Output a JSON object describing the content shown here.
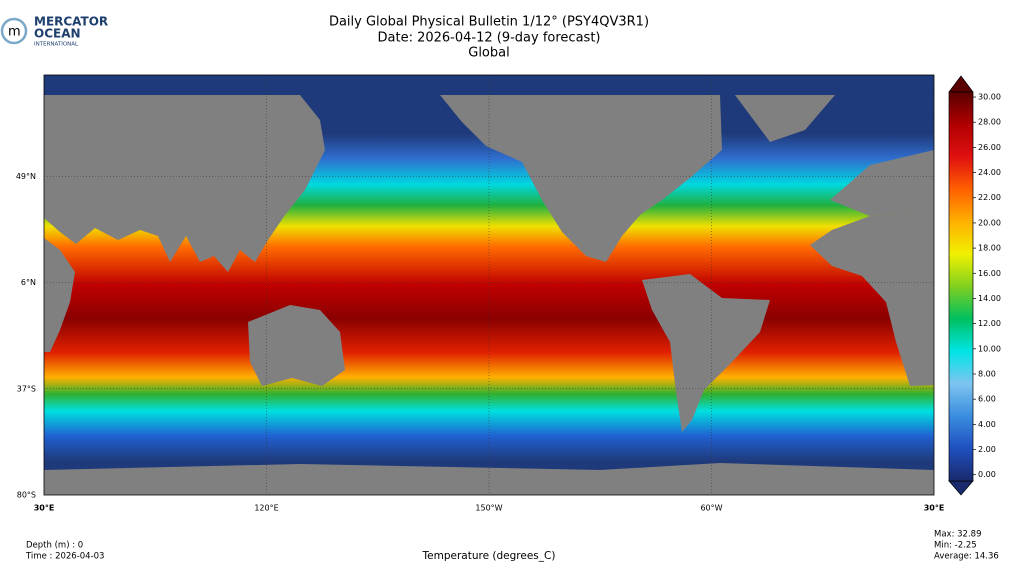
{
  "logo": {
    "line1": "MERCATOR",
    "line2": "OCEAN",
    "line3": "INTERNATIONAL"
  },
  "header": {
    "title": "Daily Global Physical Bulletin 1/12° (PSY4QV3R1)",
    "date": "Date: 2026-04-12 (9-day forecast)",
    "region": "Global"
  },
  "map": {
    "xlim": [
      30,
      390
    ],
    "ylim": [
      -80,
      90
    ],
    "xticks": [
      {
        "value": 30,
        "label": "30°E"
      },
      {
        "value": 120,
        "label": "120°E"
      },
      {
        "value": 210,
        "label": "150°W"
      },
      {
        "value": 300,
        "label": "60°W"
      },
      {
        "value": 390,
        "label": "30°E"
      }
    ],
    "yticks": [
      {
        "value": 49,
        "label": "49°N"
      },
      {
        "value": 6,
        "label": "6°N"
      },
      {
        "value": -37,
        "label": "37°S"
      },
      {
        "value": -80,
        "label": "80°S"
      }
    ],
    "grid": true
  },
  "colorbar": {
    "lim": [
      -0.5,
      30.4
    ],
    "ticks": [
      {
        "value": 0,
        "label": "0.00"
      },
      {
        "value": 2,
        "label": "2.00"
      },
      {
        "value": 4,
        "label": "4.00"
      },
      {
        "value": 6,
        "label": "6.00"
      },
      {
        "value": 8,
        "label": "8.00"
      },
      {
        "value": 10,
        "label": "10.00"
      },
      {
        "value": 12,
        "label": "12.00"
      },
      {
        "value": 14,
        "label": "14.00"
      },
      {
        "value": 16,
        "label": "16.00"
      },
      {
        "value": 18,
        "label": "18.00"
      },
      {
        "value": 20,
        "label": "20.00"
      },
      {
        "value": 22,
        "label": "22.00"
      },
      {
        "value": 24,
        "label": "24.00"
      },
      {
        "value": 26,
        "label": "26.00"
      },
      {
        "value": 28,
        "label": "28.00"
      },
      {
        "value": 30,
        "label": "30.00"
      }
    ],
    "colors": [
      "#1a2a6c",
      "#1f4fbf",
      "#3a8de0",
      "#7ec4f0",
      "#00e5e5",
      "#00c060",
      "#80d020",
      "#f0f000",
      "#ffb000",
      "#ff6000",
      "#e01010",
      "#b00000",
      "#5a0000"
    ]
  },
  "footer": {
    "depth": "Depth (m) : 0",
    "time": "Time : 2026-04-03",
    "variable": "Temperature (degrees_C)",
    "max": "Max: 32.89",
    "min": "Min: -2.25",
    "average": "Average: 14.36"
  }
}
